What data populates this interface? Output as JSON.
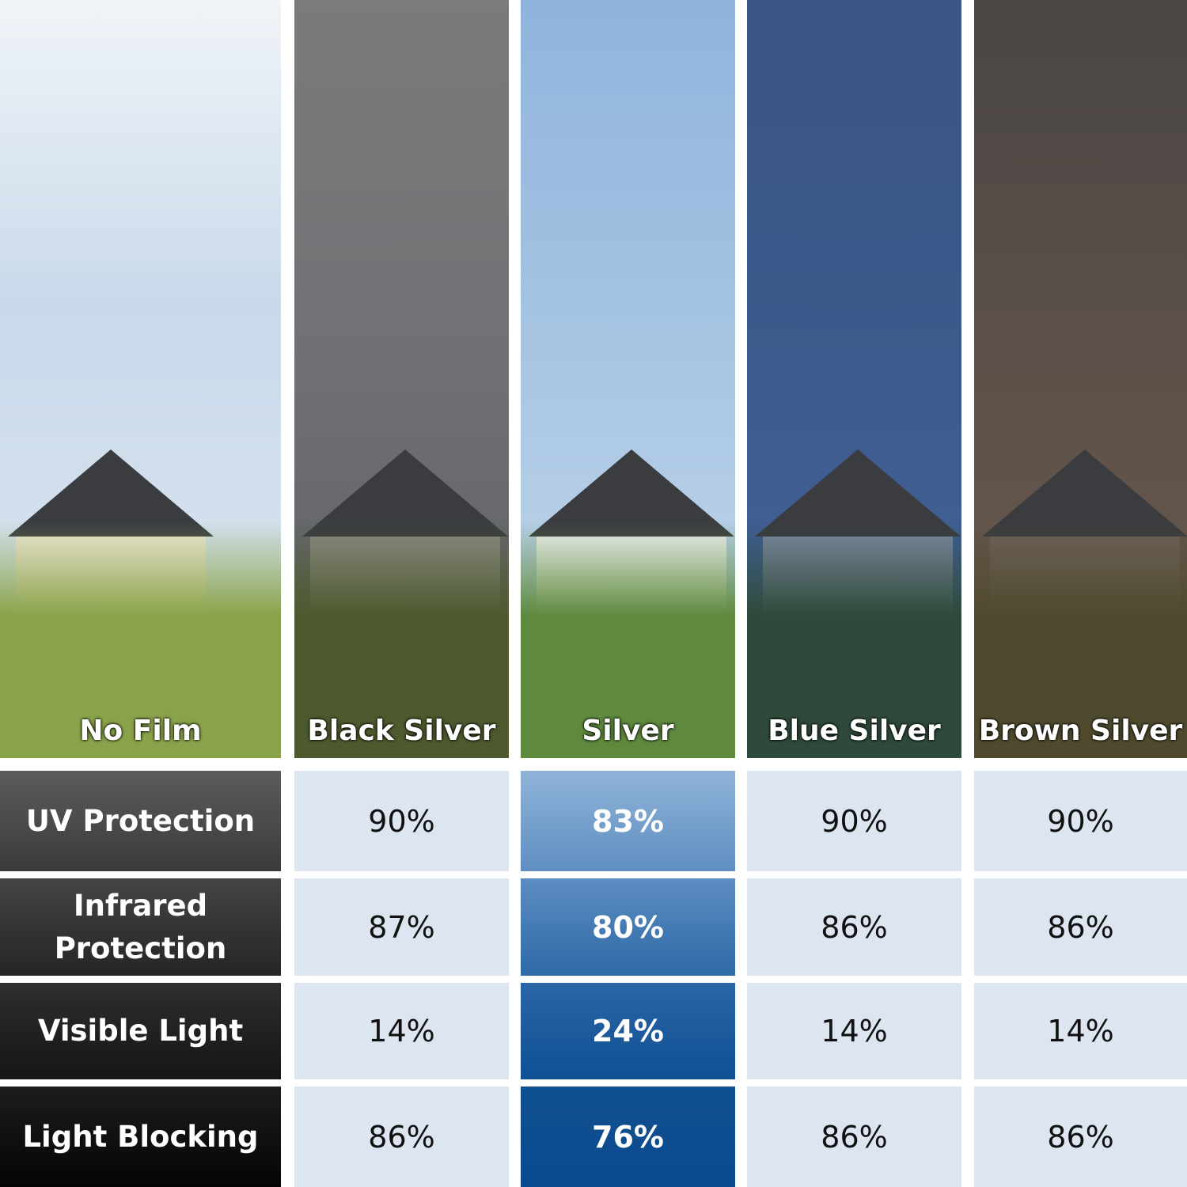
{
  "films": [
    "No Film",
    "Black Silver",
    "Silver",
    "Blue Silver",
    "Brown Silver"
  ],
  "rows": [
    {
      "label": "UV Protection",
      "values": [
        "90%",
        "83%",
        "90%",
        "90%"
      ]
    },
    {
      "label": "Infrared Protection",
      "values": [
        "87%",
        "80%",
        "86%",
        "86%"
      ]
    },
    {
      "label": "Visible Light",
      "values": [
        "14%",
        "24%",
        "14%",
        "14%"
      ]
    },
    {
      "label": "Light Blocking",
      "values": [
        "86%",
        "76%",
        "86%",
        "86%"
      ]
    }
  ],
  "colors": {
    "cell": "#dde6f0",
    "highlight_top": "#8fb3d8",
    "highlight_bottom": "#0b4a90"
  }
}
